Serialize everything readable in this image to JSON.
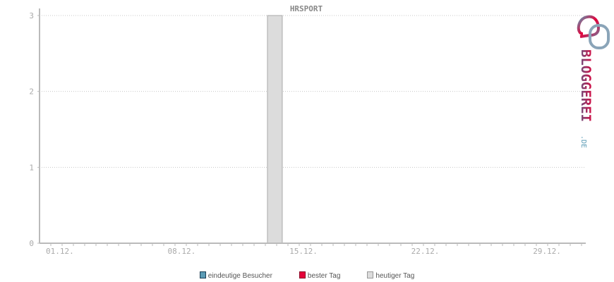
{
  "chart_data": {
    "type": "bar",
    "title": "HRSPORT",
    "xlabel": "",
    "ylabel": "",
    "ylim": [
      0,
      3
    ],
    "yticks": [
      "0",
      "1",
      "2",
      "3"
    ],
    "xlim_days": [
      1,
      31
    ],
    "xticks": [
      {
        "label": "01.12.",
        "day": 1
      },
      {
        "label": "08.12.",
        "day": 8
      },
      {
        "label": "15.12.",
        "day": 15
      },
      {
        "label": "22.12.",
        "day": 22
      },
      {
        "label": "29.12.",
        "day": 29
      }
    ],
    "grid": true,
    "series": [
      {
        "name": "eindeutige Besucher",
        "color": "#5b9bb5",
        "points": []
      },
      {
        "name": "bester Tag",
        "color": "#e4003a",
        "points": []
      },
      {
        "name": "heutiger Tag",
        "color": "#dcdcdc",
        "points": [
          {
            "day": "14.12.",
            "x": 14,
            "value": 3
          }
        ]
      }
    ],
    "legend_position": "bottom"
  },
  "logo": {
    "text": "BLOGGEREI",
    "suffix": ".DE"
  }
}
